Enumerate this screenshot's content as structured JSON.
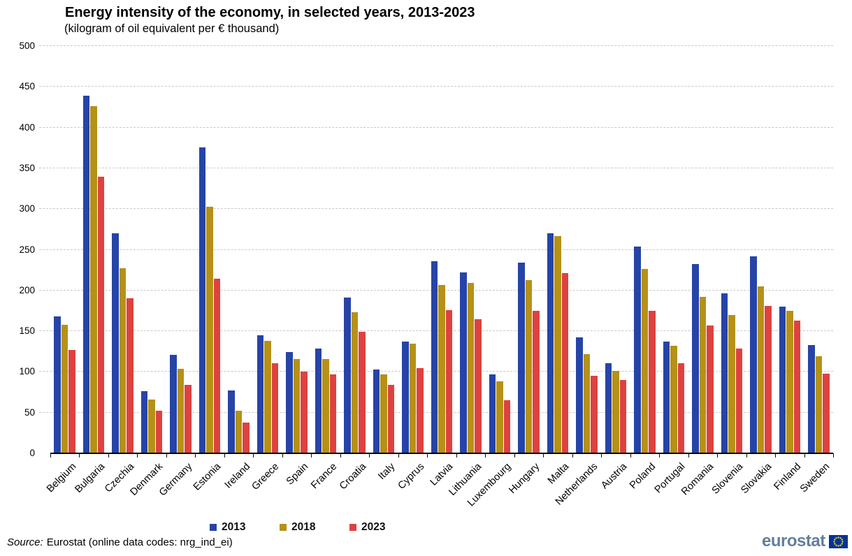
{
  "title": "Energy intensity of the economy, in selected years, 2013-2023",
  "subtitle": "(kilogram of oil equivalent per € thousand)",
  "source": {
    "prefix": "Source:",
    "text": "Eurostat (online data codes: nrg_ind_ei)"
  },
  "logo": {
    "text": "eurostat",
    "flag_icon": "eu-flag"
  },
  "colors": {
    "series_2013": "#2644a7",
    "series_2018": "#b59118",
    "series_2023": "#de423f",
    "gridline": "#c9c9c9",
    "axis": "#000000",
    "logo_text": "#647f9b",
    "flag_background": "#003399",
    "flag_stars": "#ffcc00"
  },
  "chart_data": {
    "type": "bar",
    "title": "Energy intensity of the economy, in selected years, 2013-2023",
    "unit_label": "(kilogram of oil equivalent per € thousand)",
    "xlabel": "",
    "ylabel": "",
    "ylim": [
      0,
      500
    ],
    "yticks": [
      0,
      50,
      100,
      150,
      200,
      250,
      300,
      350,
      400,
      450,
      500
    ],
    "grid": "horizontal-dashed",
    "legend_position": "bottom",
    "categories": [
      "Belgium",
      "Bulgaria",
      "Czechia",
      "Denmark",
      "Germany",
      "Estonia",
      "Ireland",
      "Greece",
      "Spain",
      "France",
      "Croatia",
      "Italy",
      "Cyprus",
      "Latvia",
      "Lithuania",
      "Luxembourg",
      "Hungary",
      "Malta",
      "Netherlands",
      "Austria",
      "Poland",
      "Portugal",
      "Romania",
      "Slovenia",
      "Slovakia",
      "Finland",
      "Sweden"
    ],
    "series": [
      {
        "name": "2013",
        "color": "#2644a7",
        "values": [
          168,
          439,
          270,
          76,
          121,
          376,
          77,
          145,
          124,
          129,
          191,
          103,
          137,
          236,
          222,
          97,
          234,
          270,
          142,
          111,
          254,
          137,
          232,
          196,
          242,
          180,
          133
        ]
      },
      {
        "name": "2018",
        "color": "#b59118",
        "values": [
          158,
          426,
          227,
          66,
          104,
          303,
          52,
          138,
          116,
          116,
          173,
          97,
          135,
          207,
          209,
          88,
          213,
          267,
          122,
          101,
          226,
          132,
          192,
          170,
          205,
          175,
          119
        ]
      },
      {
        "name": "2023",
        "color": "#de423f",
        "values": [
          127,
          340,
          190,
          52,
          84,
          214,
          38,
          111,
          100,
          97,
          149,
          84,
          105,
          176,
          165,
          65,
          175,
          221,
          95,
          90,
          175,
          111,
          157,
          129,
          181,
          163,
          98
        ]
      }
    ]
  }
}
